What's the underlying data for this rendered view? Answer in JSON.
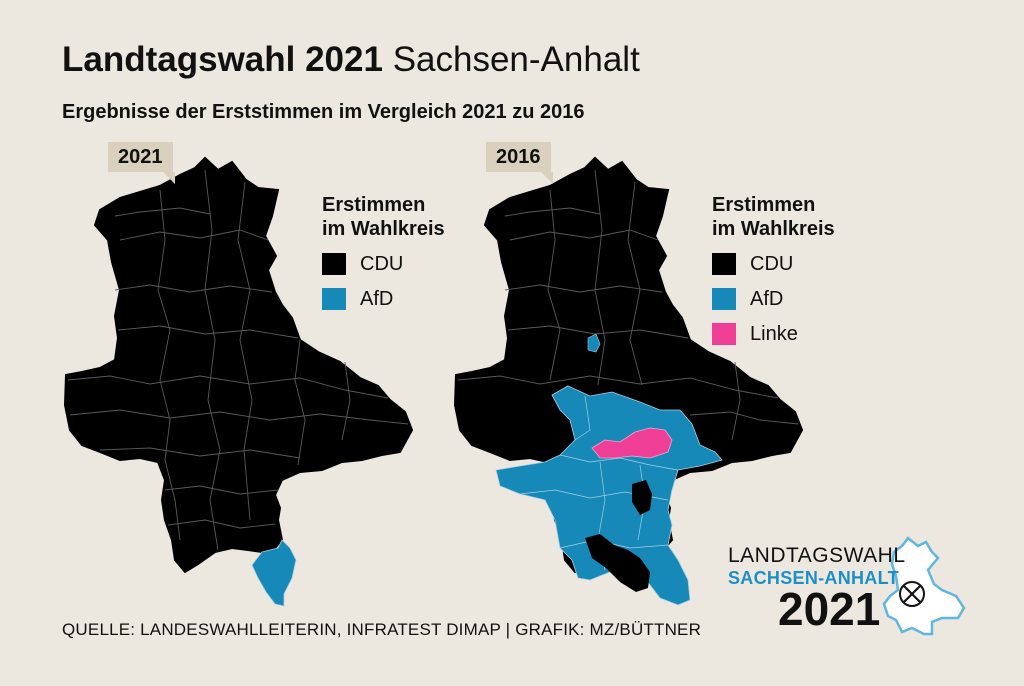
{
  "header": {
    "title_bold": "Landtagswahl 2021",
    "title_light": "Sachsen-Anhalt",
    "subtitle": "Ergebnisse der Erststimmen im Vergleich 2021 zu 2016"
  },
  "maps": [
    {
      "year": "2021",
      "legend_title_1": "Erstimmen",
      "legend_title_2": "im Wahlkreis",
      "legend": [
        {
          "label": "CDU",
          "color": "#000000"
        },
        {
          "label": "AfD",
          "color": "#1689b8"
        }
      ]
    },
    {
      "year": "2016",
      "legend_title_1": "Erstimmen",
      "legend_title_2": "im Wahlkreis",
      "legend": [
        {
          "label": "CDU",
          "color": "#000000"
        },
        {
          "label": "AfD",
          "color": "#1689b8"
        },
        {
          "label": "Linke",
          "color": "#ee3e96"
        }
      ]
    }
  ],
  "source": "QUELLE: LANDESWAHLLEITERIN, INFRATEST DIMAP | GRAFIK: MZ/BÜTTNER",
  "logo": {
    "line1": "LANDTAGSWAHL",
    "line2": "SACHSEN-ANHALT",
    "line3": "2021"
  }
}
